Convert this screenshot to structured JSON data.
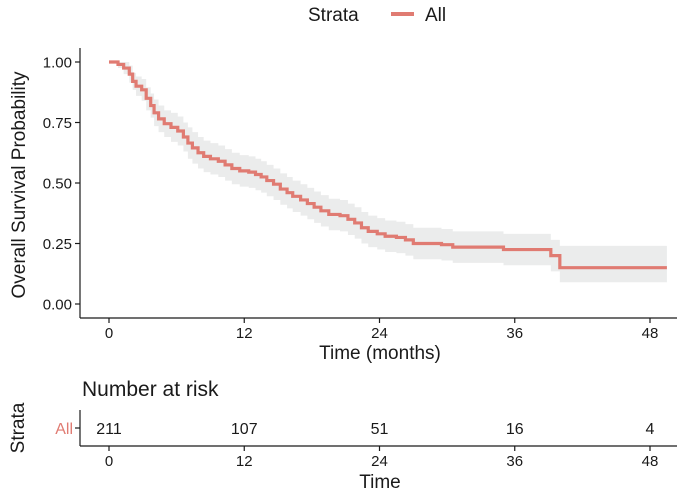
{
  "chart_data": [
    {
      "type": "line",
      "subtype": "kaplan-meier survival curve",
      "legend": {
        "title": "Strata",
        "position": "top",
        "entries": [
          "All"
        ]
      },
      "xlabel": "Time (months)",
      "ylabel": "Overall Survival Probability",
      "xlim": [
        -1.5,
        50
      ],
      "ylim": [
        0,
        1
      ],
      "x_ticks": [
        0,
        12,
        24,
        36,
        48
      ],
      "y_ticks": [
        0.0,
        0.25,
        0.5,
        0.75,
        1.0
      ],
      "y_tick_labels": [
        "0.00",
        "0.25",
        "0.50",
        "0.75",
        "1.00"
      ],
      "confidence_band": true,
      "grid": false,
      "series": [
        {
          "name": "All",
          "color": "#E07B72",
          "band_color": "#EBECEC",
          "points": [
            [
              0,
              1.0
            ],
            [
              0.8,
              0.99
            ],
            [
              1.3,
              0.975
            ],
            [
              1.8,
              0.95
            ],
            [
              2.1,
              0.92
            ],
            [
              2.4,
              0.9
            ],
            [
              2.9,
              0.885
            ],
            [
              3.3,
              0.85
            ],
            [
              3.7,
              0.82
            ],
            [
              4.0,
              0.79
            ],
            [
              4.4,
              0.765
            ],
            [
              4.9,
              0.745
            ],
            [
              5.5,
              0.73
            ],
            [
              6.1,
              0.715
            ],
            [
              6.6,
              0.69
            ],
            [
              7.0,
              0.665
            ],
            [
              7.4,
              0.645
            ],
            [
              7.9,
              0.625
            ],
            [
              8.4,
              0.61
            ],
            [
              9.0,
              0.6
            ],
            [
              9.7,
              0.59
            ],
            [
              10.3,
              0.575
            ],
            [
              10.9,
              0.56
            ],
            [
              11.6,
              0.55
            ],
            [
              12.4,
              0.545
            ],
            [
              13.0,
              0.535
            ],
            [
              13.5,
              0.525
            ],
            [
              14.0,
              0.51
            ],
            [
              14.6,
              0.495
            ],
            [
              15.2,
              0.475
            ],
            [
              15.8,
              0.46
            ],
            [
              16.3,
              0.445
            ],
            [
              17.0,
              0.43
            ],
            [
              17.6,
              0.415
            ],
            [
              18.2,
              0.4
            ],
            [
              18.8,
              0.385
            ],
            [
              19.5,
              0.37
            ],
            [
              20.5,
              0.365
            ],
            [
              21.2,
              0.35
            ],
            [
              21.8,
              0.335
            ],
            [
              22.4,
              0.315
            ],
            [
              23.0,
              0.3
            ],
            [
              23.8,
              0.29
            ],
            [
              24.5,
              0.28
            ],
            [
              25.5,
              0.275
            ],
            [
              26.3,
              0.265
            ],
            [
              27.0,
              0.25
            ],
            [
              29.5,
              0.245
            ],
            [
              30.5,
              0.235
            ],
            [
              35.0,
              0.225
            ],
            [
              39.2,
              0.2
            ],
            [
              40.0,
              0.15
            ],
            [
              49.5,
              0.15
            ]
          ],
          "lower": [
            [
              0,
              1.0
            ],
            [
              0.8,
              0.975
            ],
            [
              1.3,
              0.95
            ],
            [
              1.8,
              0.915
            ],
            [
              2.1,
              0.885
            ],
            [
              2.4,
              0.86
            ],
            [
              2.9,
              0.84
            ],
            [
              3.3,
              0.8
            ],
            [
              3.7,
              0.77
            ],
            [
              4.0,
              0.735
            ],
            [
              4.4,
              0.71
            ],
            [
              4.9,
              0.69
            ],
            [
              5.5,
              0.67
            ],
            [
              6.1,
              0.655
            ],
            [
              6.6,
              0.63
            ],
            [
              7.0,
              0.6
            ],
            [
              7.4,
              0.58
            ],
            [
              7.9,
              0.56
            ],
            [
              8.4,
              0.545
            ],
            [
              9.0,
              0.535
            ],
            [
              9.7,
              0.525
            ],
            [
              10.3,
              0.51
            ],
            [
              10.9,
              0.495
            ],
            [
              11.6,
              0.485
            ],
            [
              12.4,
              0.48
            ],
            [
              13.0,
              0.47
            ],
            [
              13.5,
              0.46
            ],
            [
              14.0,
              0.445
            ],
            [
              14.6,
              0.43
            ],
            [
              15.2,
              0.41
            ],
            [
              15.8,
              0.395
            ],
            [
              16.3,
              0.38
            ],
            [
              17.0,
              0.365
            ],
            [
              17.6,
              0.35
            ],
            [
              18.2,
              0.335
            ],
            [
              18.8,
              0.32
            ],
            [
              19.5,
              0.305
            ],
            [
              20.5,
              0.3
            ],
            [
              21.2,
              0.285
            ],
            [
              21.8,
              0.27
            ],
            [
              22.4,
              0.25
            ],
            [
              23.0,
              0.235
            ],
            [
              23.8,
              0.225
            ],
            [
              24.5,
              0.215
            ],
            [
              25.5,
              0.21
            ],
            [
              26.3,
              0.2
            ],
            [
              27.0,
              0.185
            ],
            [
              29.5,
              0.18
            ],
            [
              30.5,
              0.17
            ],
            [
              35.0,
              0.16
            ],
            [
              39.2,
              0.135
            ],
            [
              40.0,
              0.09
            ],
            [
              49.5,
              0.09
            ]
          ],
          "upper": [
            [
              0,
              1.0
            ],
            [
              0.8,
              1.0
            ],
            [
              1.3,
              1.0
            ],
            [
              1.8,
              0.985
            ],
            [
              2.1,
              0.955
            ],
            [
              2.4,
              0.94
            ],
            [
              2.9,
              0.93
            ],
            [
              3.3,
              0.895
            ],
            [
              3.7,
              0.87
            ],
            [
              4.0,
              0.845
            ],
            [
              4.4,
              0.82
            ],
            [
              4.9,
              0.8
            ],
            [
              5.5,
              0.79
            ],
            [
              6.1,
              0.775
            ],
            [
              6.6,
              0.75
            ],
            [
              7.0,
              0.73
            ],
            [
              7.4,
              0.71
            ],
            [
              7.9,
              0.69
            ],
            [
              8.4,
              0.675
            ],
            [
              9.0,
              0.665
            ],
            [
              9.7,
              0.655
            ],
            [
              10.3,
              0.64
            ],
            [
              10.9,
              0.625
            ],
            [
              11.6,
              0.615
            ],
            [
              12.4,
              0.61
            ],
            [
              13.0,
              0.6
            ],
            [
              13.5,
              0.59
            ],
            [
              14.0,
              0.575
            ],
            [
              14.6,
              0.56
            ],
            [
              15.2,
              0.54
            ],
            [
              15.8,
              0.525
            ],
            [
              16.3,
              0.51
            ],
            [
              17.0,
              0.495
            ],
            [
              17.6,
              0.48
            ],
            [
              18.2,
              0.465
            ],
            [
              18.8,
              0.45
            ],
            [
              19.5,
              0.435
            ],
            [
              20.5,
              0.43
            ],
            [
              21.2,
              0.415
            ],
            [
              21.8,
              0.4
            ],
            [
              22.4,
              0.38
            ],
            [
              23.0,
              0.365
            ],
            [
              23.8,
              0.355
            ],
            [
              24.5,
              0.345
            ],
            [
              25.5,
              0.34
            ],
            [
              26.3,
              0.33
            ],
            [
              27.0,
              0.315
            ],
            [
              29.5,
              0.31
            ],
            [
              30.5,
              0.3
            ],
            [
              35.0,
              0.29
            ],
            [
              39.2,
              0.265
            ],
            [
              40.0,
              0.24
            ],
            [
              49.5,
              0.24
            ]
          ]
        }
      ]
    },
    {
      "type": "table",
      "title": "Number at risk",
      "xlabel": "Time",
      "ylabel": "Strata",
      "x_ticks": [
        0,
        12,
        24,
        36,
        48
      ],
      "rows": [
        {
          "label": "All",
          "color": "#E07B72",
          "values": [
            211,
            107,
            51,
            16,
            4
          ]
        }
      ]
    }
  ]
}
